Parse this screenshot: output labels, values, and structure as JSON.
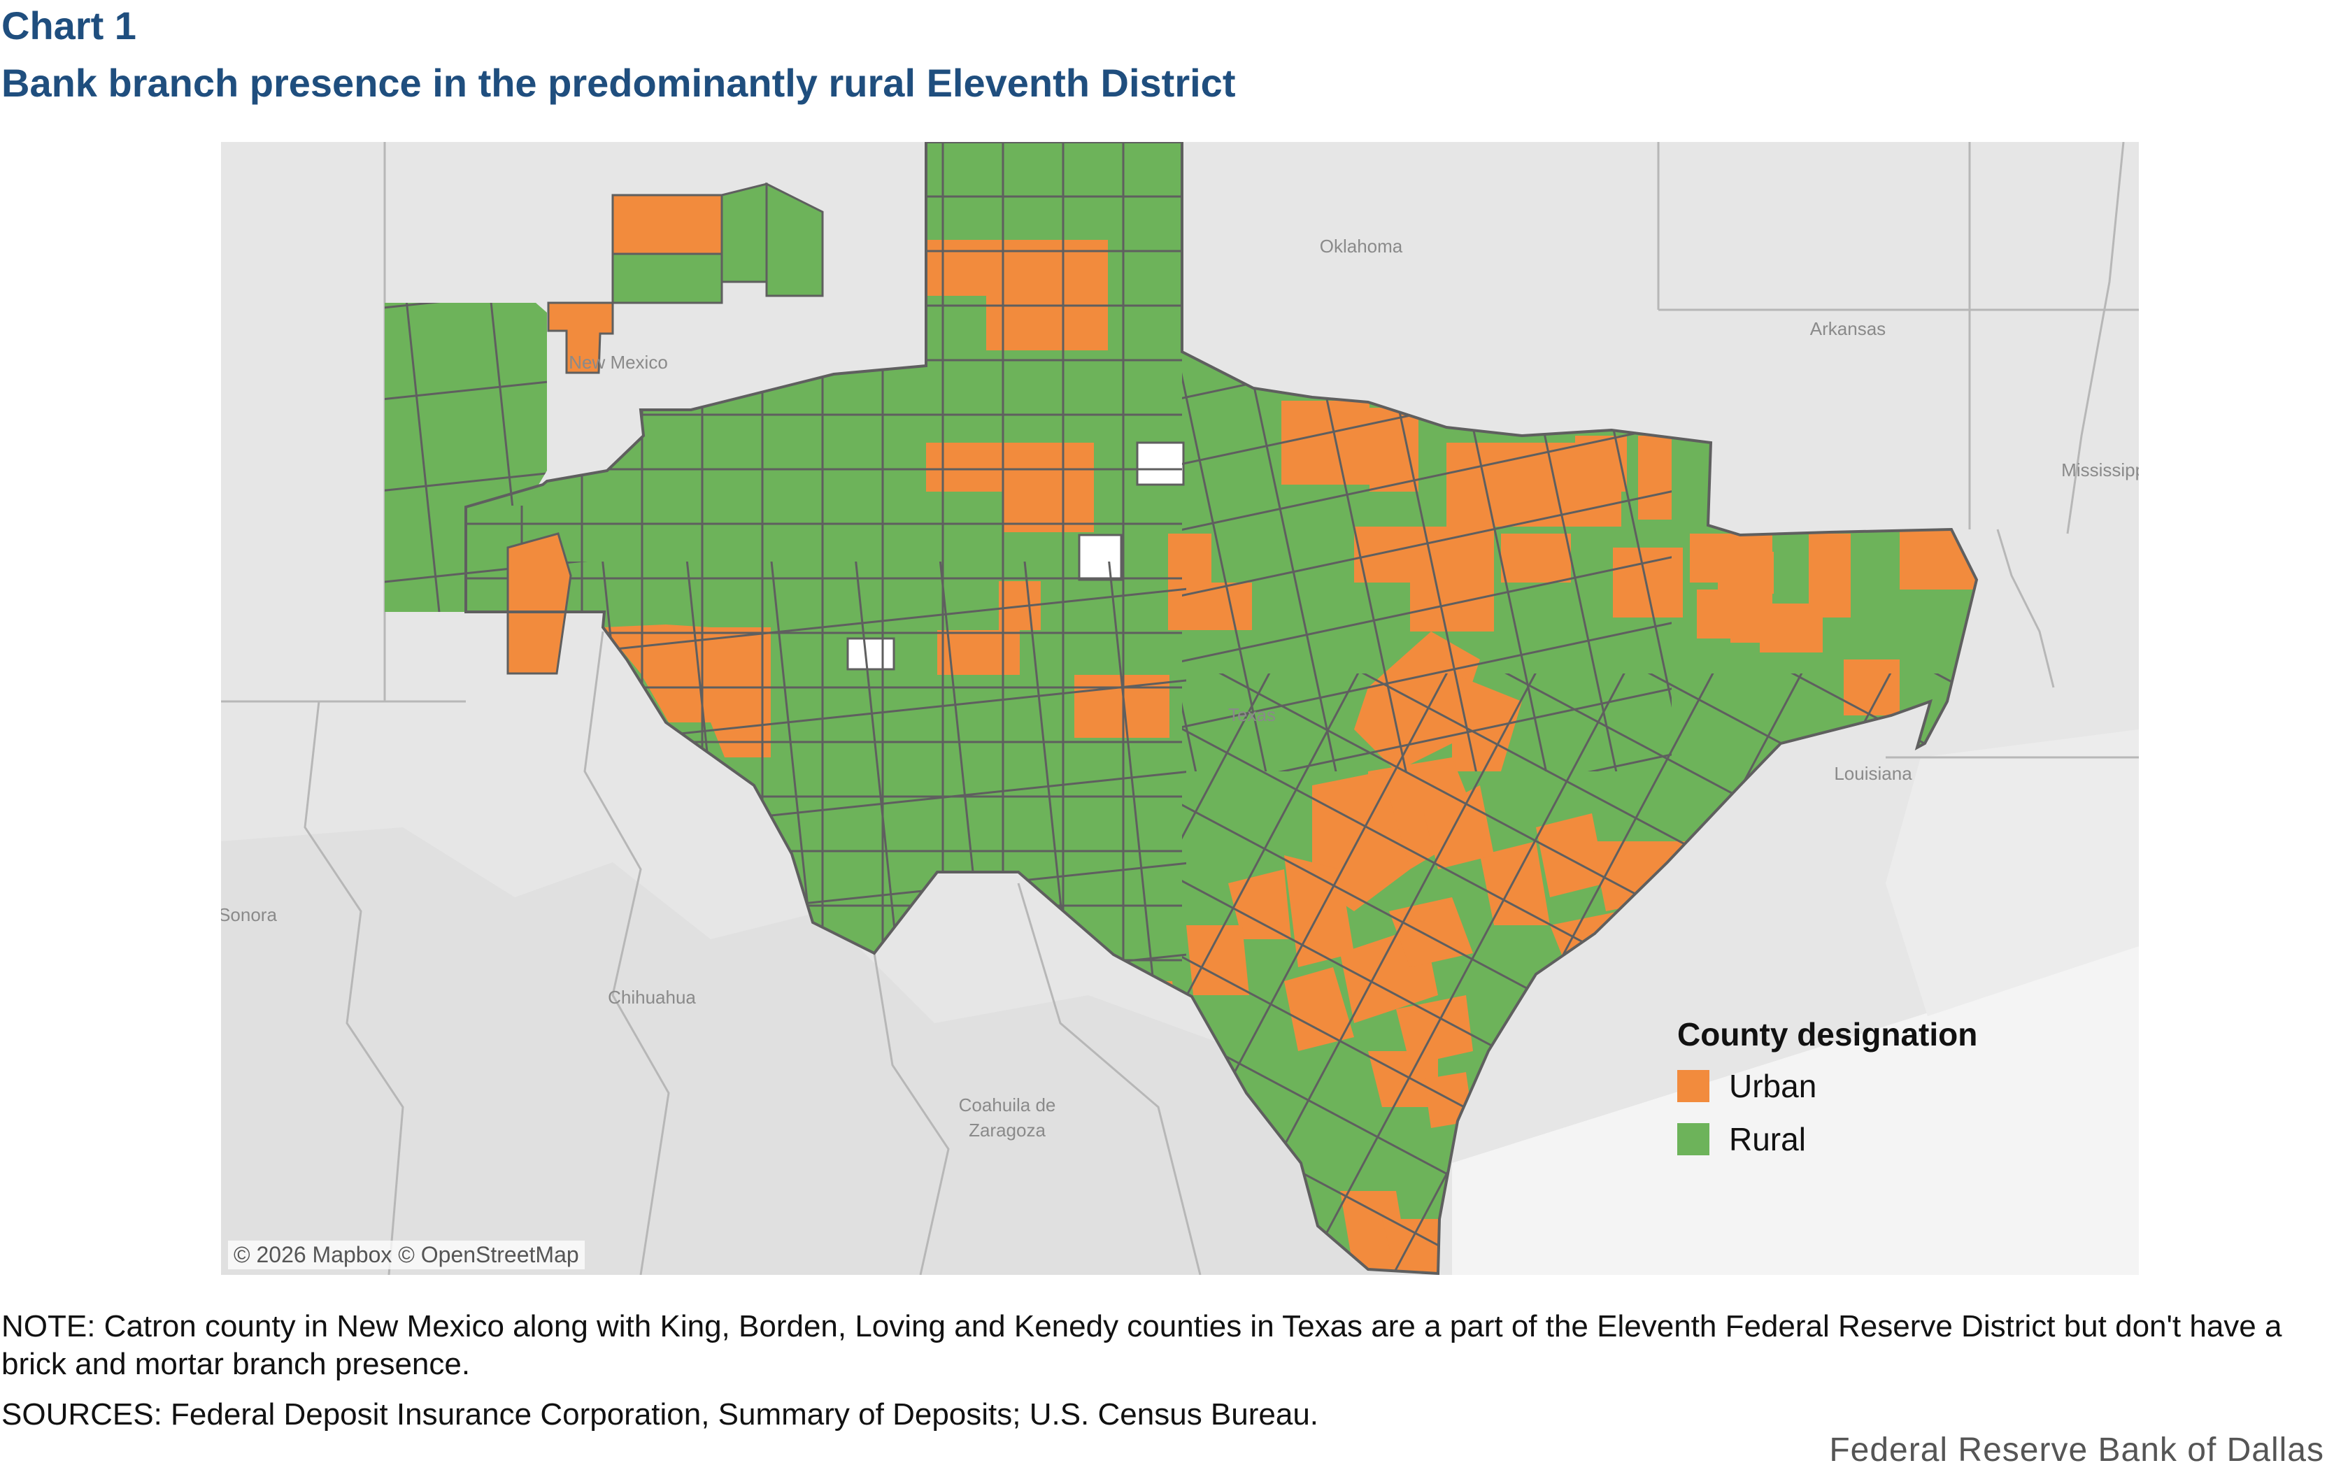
{
  "chart_label": "Chart 1",
  "title": "Bank branch presence in the predominantly rural Eleventh District",
  "map": {
    "labels": {
      "oklahoma": "Oklahoma",
      "arkansas": "Arkansas",
      "mississippi": "Mississippi",
      "new_mexico": "New Mexico",
      "texas": "Texas",
      "louisiana": "Louisiana",
      "sonora": "Sonora",
      "chihuahua": "Chihuahua",
      "coahuila_1": "Coahuila de",
      "coahuila_2": "Zaragoza"
    },
    "attribution": "© 2026 Mapbox © OpenStreetMap",
    "colors": {
      "urban": "#f28b3d",
      "rural": "#6db35a",
      "no_branch": "#e9e9e9",
      "border": "#5f5f5f",
      "basemap": "#e6e6e6"
    }
  },
  "legend": {
    "title": "County designation",
    "items": [
      {
        "label": "Urban",
        "color": "#f28b3d"
      },
      {
        "label": "Rural",
        "color": "#6db35a"
      }
    ]
  },
  "note": "NOTE: Catron county in New Mexico along with King, Borden, Loving and Kenedy counties in Texas are a part of the Eleventh Federal Reserve District but don't have a brick and mortar branch presence.",
  "sources": "SOURCES: Federal Deposit Insurance Corporation, Summary of Deposits; U.S. Census Bureau.",
  "footer": "Federal Reserve Bank of Dallas"
}
